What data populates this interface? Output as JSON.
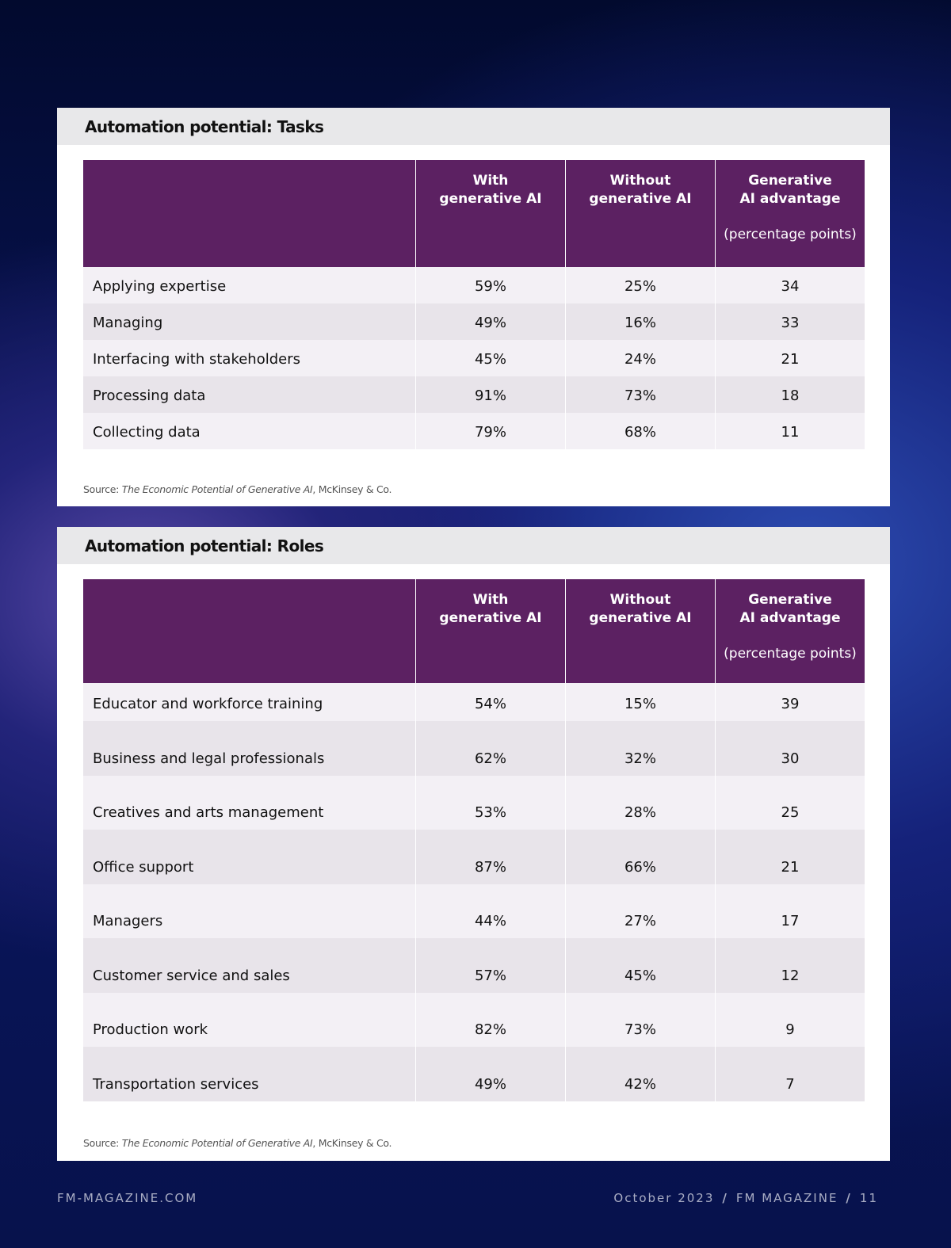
{
  "tables": [
    {
      "title": "Automation potential: Tasks",
      "headers": [
        [
          "With",
          "generative AI"
        ],
        [
          "Without",
          "generative AI"
        ],
        [
          "Generative",
          "AI advantage"
        ]
      ],
      "header_note": "(percentage points)",
      "rows": [
        [
          "Applying expertise",
          "59%",
          "25%",
          "34"
        ],
        [
          "Managing",
          "49%",
          "16%",
          "33"
        ],
        [
          "Interfacing with stakeholders",
          "45%",
          "24%",
          "21"
        ],
        [
          "Processing data",
          "91%",
          "73%",
          "18"
        ],
        [
          "Collecting data",
          "79%",
          "68%",
          "11"
        ]
      ],
      "source": {
        "prefix": "Source:",
        "title": "The Economic Potential of Generative AI",
        "suffix": ", McKinsey & Co."
      }
    },
    {
      "title": "Automation potential: Roles",
      "headers": [
        [
          "With",
          "generative AI"
        ],
        [
          "Without",
          "generative AI"
        ],
        [
          "Generative",
          "AI advantage"
        ]
      ],
      "header_note": "(percentage points)",
      "rows": [
        [
          "Educator and workforce training",
          "54%",
          "15%",
          "39"
        ],
        [
          "Business and legal professionals",
          "62%",
          "32%",
          "30"
        ],
        [
          "Creatives and arts management",
          "53%",
          "28%",
          "25"
        ],
        [
          "Office support",
          "87%",
          "66%",
          "21"
        ],
        [
          "Managers",
          "44%",
          "27%",
          "17"
        ],
        [
          "Customer service and sales",
          "57%",
          "45%",
          "12"
        ],
        [
          "Production work",
          "82%",
          "73%",
          "9"
        ],
        [
          "Transportation services",
          "49%",
          "42%",
          "7"
        ]
      ],
      "source": {
        "prefix": "Source:",
        "title": "The Economic Potential of Generative AI",
        "suffix": ", McKinsey & Co."
      }
    }
  ],
  "footer": {
    "left": "FM-MAGAZINE.COM",
    "right": [
      "October 2023",
      "FM MAGAZINE",
      "11"
    ],
    "separator": "/"
  }
}
